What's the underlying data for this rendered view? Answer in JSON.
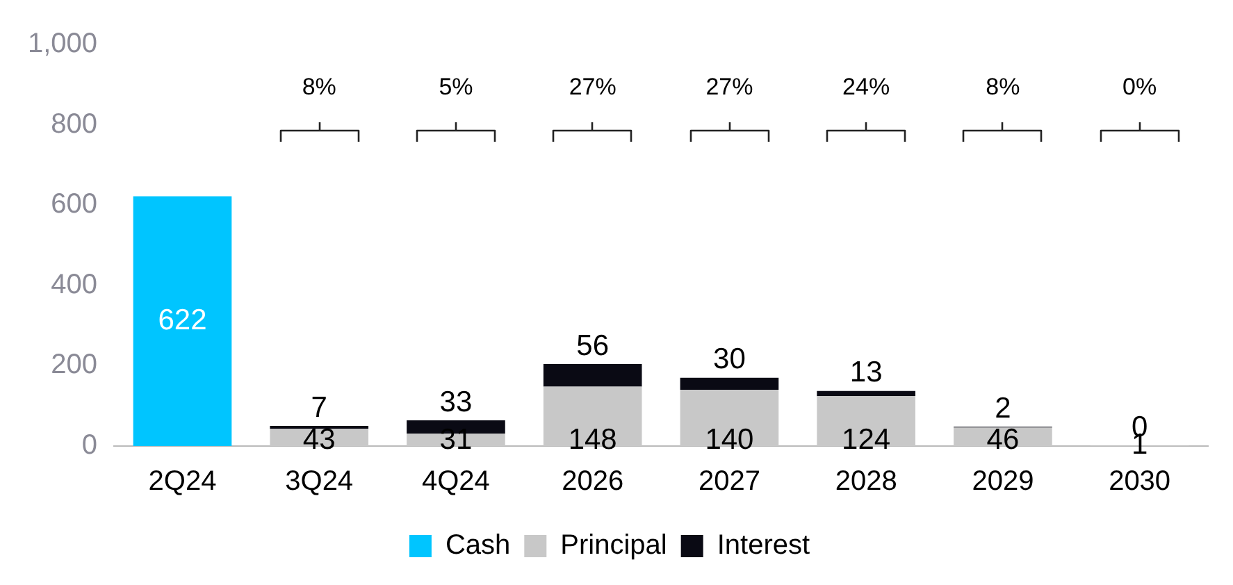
{
  "chart_data": {
    "type": "bar",
    "stacked": true,
    "categories": [
      "2Q24",
      "3Q24",
      "4Q24",
      "2026",
      "2027",
      "2028",
      "2029",
      "2030"
    ],
    "series": [
      {
        "name": "Cash",
        "color": "#00c5ff",
        "values": [
          622,
          null,
          null,
          null,
          null,
          null,
          null,
          null
        ]
      },
      {
        "name": "Principal",
        "color": "#c8c8c8",
        "values": [
          null,
          43,
          31,
          148,
          140,
          124,
          46,
          1
        ]
      },
      {
        "name": "Interest",
        "color": "#0a0a14",
        "values": [
          null,
          7,
          33,
          56,
          30,
          13,
          2,
          0
        ]
      }
    ],
    "ylim": [
      0,
      1000
    ],
    "yticks": [
      0,
      200,
      400,
      600,
      800,
      {
        "value": 1000,
        "label": "1,000"
      }
    ],
    "grid": false,
    "legend": "bottom",
    "data_labels": true,
    "annotations": [
      {
        "text": "8%",
        "x": "3Q24"
      },
      {
        "text": "5%",
        "x": "4Q24"
      },
      {
        "text": "27%",
        "x": "2026"
      },
      {
        "text": "27%",
        "x": "2027"
      },
      {
        "text": "24%",
        "x": "2028"
      },
      {
        "text": "8%",
        "x": "2029"
      },
      {
        "text": "0%",
        "x": "2030"
      }
    ]
  }
}
